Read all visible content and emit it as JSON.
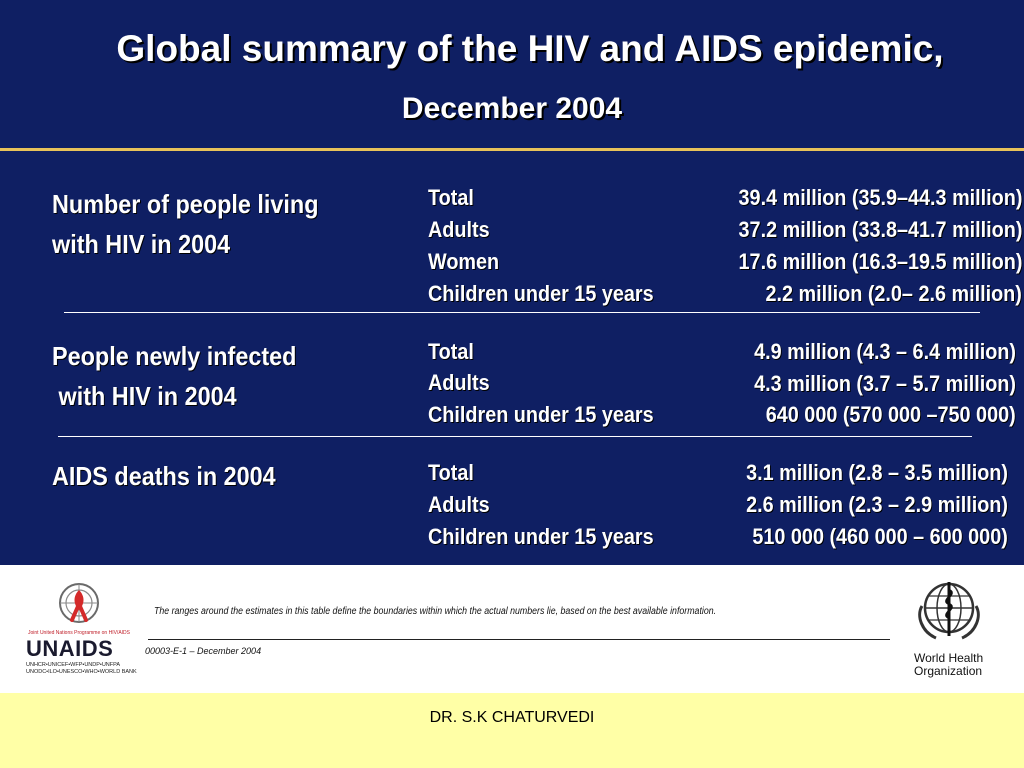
{
  "title": {
    "line1": "Global summary of the HIV and AIDS epidemic,",
    "line2": "December 2004"
  },
  "sections": [
    {
      "label_line1": "Number of people living",
      "label_line2": "with HIV in 2004",
      "rows": [
        {
          "label": "Total",
          "value": "39.4 million (35.9–44.3 million)"
        },
        {
          "label": "Adults",
          "value": "37.2 million (33.8–41.7 million)"
        },
        {
          "label": "Women",
          "value": "17.6 million (16.3–19.5 million)"
        },
        {
          "label": "Children under 15 years",
          "value": "2.2 million (2.0– 2.6 million)"
        }
      ]
    },
    {
      "label_line1": "People newly infected",
      "label_line2": " with HIV in 2004",
      "rows": [
        {
          "label": "Total",
          "value": "4.9 million (4.3 – 6.4 million)"
        },
        {
          "label": "Adults",
          "value": "4.3 million (3.7 – 5.7 million)"
        },
        {
          "label": "Children under 15 years",
          "value": "640 000 (570 000 –750 000)"
        }
      ]
    },
    {
      "label_line1": "AIDS deaths in 2004",
      "rows": [
        {
          "label": "Total",
          "value": "3.1 million (2.8 – 3.5 million)"
        },
        {
          "label": "Adults",
          "value": "2.6 million (2.3 – 2.9 million)"
        },
        {
          "label": "Children under 15 years",
          "value": "510 000 (460 000 – 600 000)"
        }
      ]
    }
  ],
  "footer": {
    "note": "The ranges around the estimates in this table define the boundaries within which the actual numbers lie, based on the best available information.",
    "doc_code": "00003-E-1 – December 2004",
    "unaids": {
      "tagline": "Joint United Nations Programme on HIV/AIDS",
      "wordmark": "UNAIDS",
      "partners_line1": "UNHCR•UNICEF•WFP•UNDP•UNFPA",
      "partners_line2": "UNODC•ILO•UNESCO•WHO•WORLD BANK"
    },
    "who": {
      "line1": "World Health",
      "line2": "Organization"
    },
    "author": "DR. S.K CHATURVEDI"
  },
  "colors": {
    "slide_background": "#0f1f63",
    "title_rule": "#e8c25a",
    "footer_band": "#ffffa6",
    "ribbon": "#d42a2a"
  }
}
